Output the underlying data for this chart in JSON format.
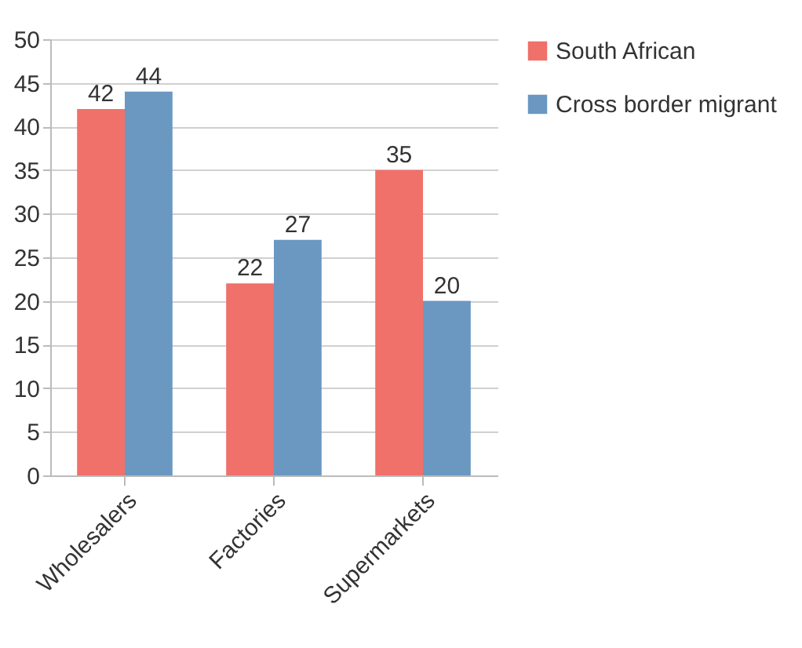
{
  "chart_data": {
    "type": "bar",
    "categories": [
      "Wholesalers",
      "Factories",
      "Supermarkets"
    ],
    "series": [
      {
        "name": "South African",
        "color": "#f0706a",
        "values": [
          42,
          22,
          35
        ]
      },
      {
        "name": "Cross border migrant",
        "color": "#6a98c1",
        "values": [
          44,
          27,
          20
        ]
      }
    ],
    "ylim": [
      0,
      50
    ],
    "yticks": [
      0,
      5,
      10,
      15,
      20,
      25,
      30,
      35,
      40,
      45,
      50
    ],
    "grid": "y",
    "legend": "right",
    "data_labels": true
  }
}
